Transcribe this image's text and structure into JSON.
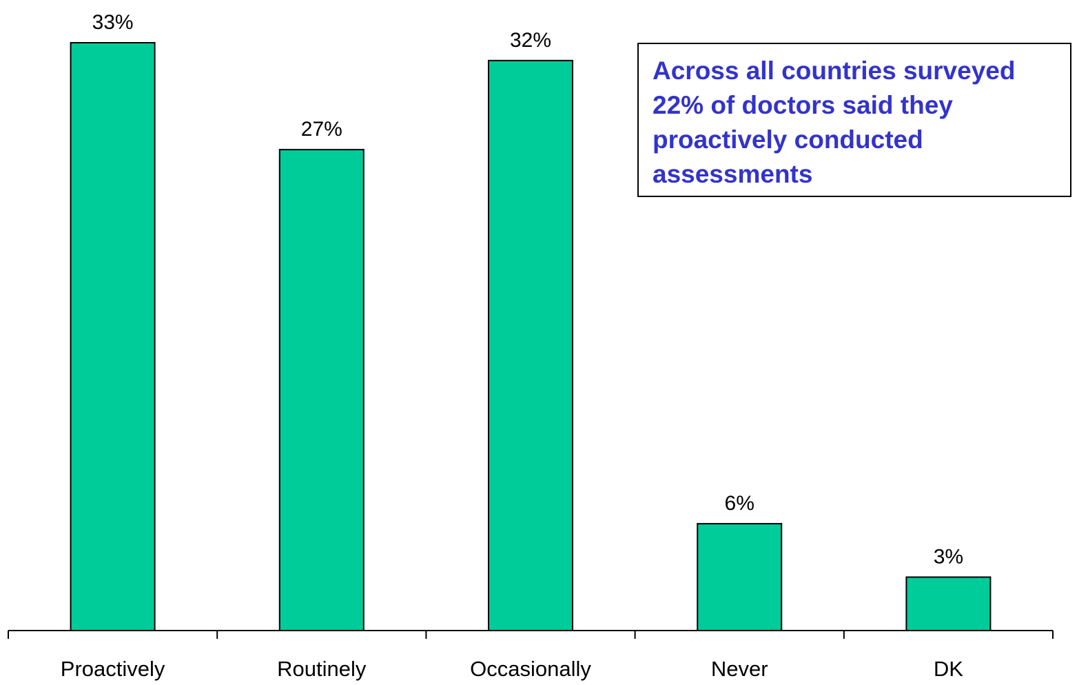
{
  "chart_data": {
    "type": "bar",
    "categories": [
      "Proactively",
      "Routinely",
      "Occasionally",
      "Never",
      "DK"
    ],
    "values": [
      33,
      27,
      32,
      6,
      3
    ],
    "value_labels": [
      "33%",
      "27%",
      "32%",
      "6%",
      "3%"
    ],
    "ylim": [
      0,
      35
    ],
    "grid": false,
    "bar_color": "#00cc99",
    "annotation": {
      "lines": [
        "Across all countries surveyed",
        "22% of doctors said they",
        "proactively conducted",
        "assessments"
      ],
      "color": "#3333cc"
    }
  }
}
